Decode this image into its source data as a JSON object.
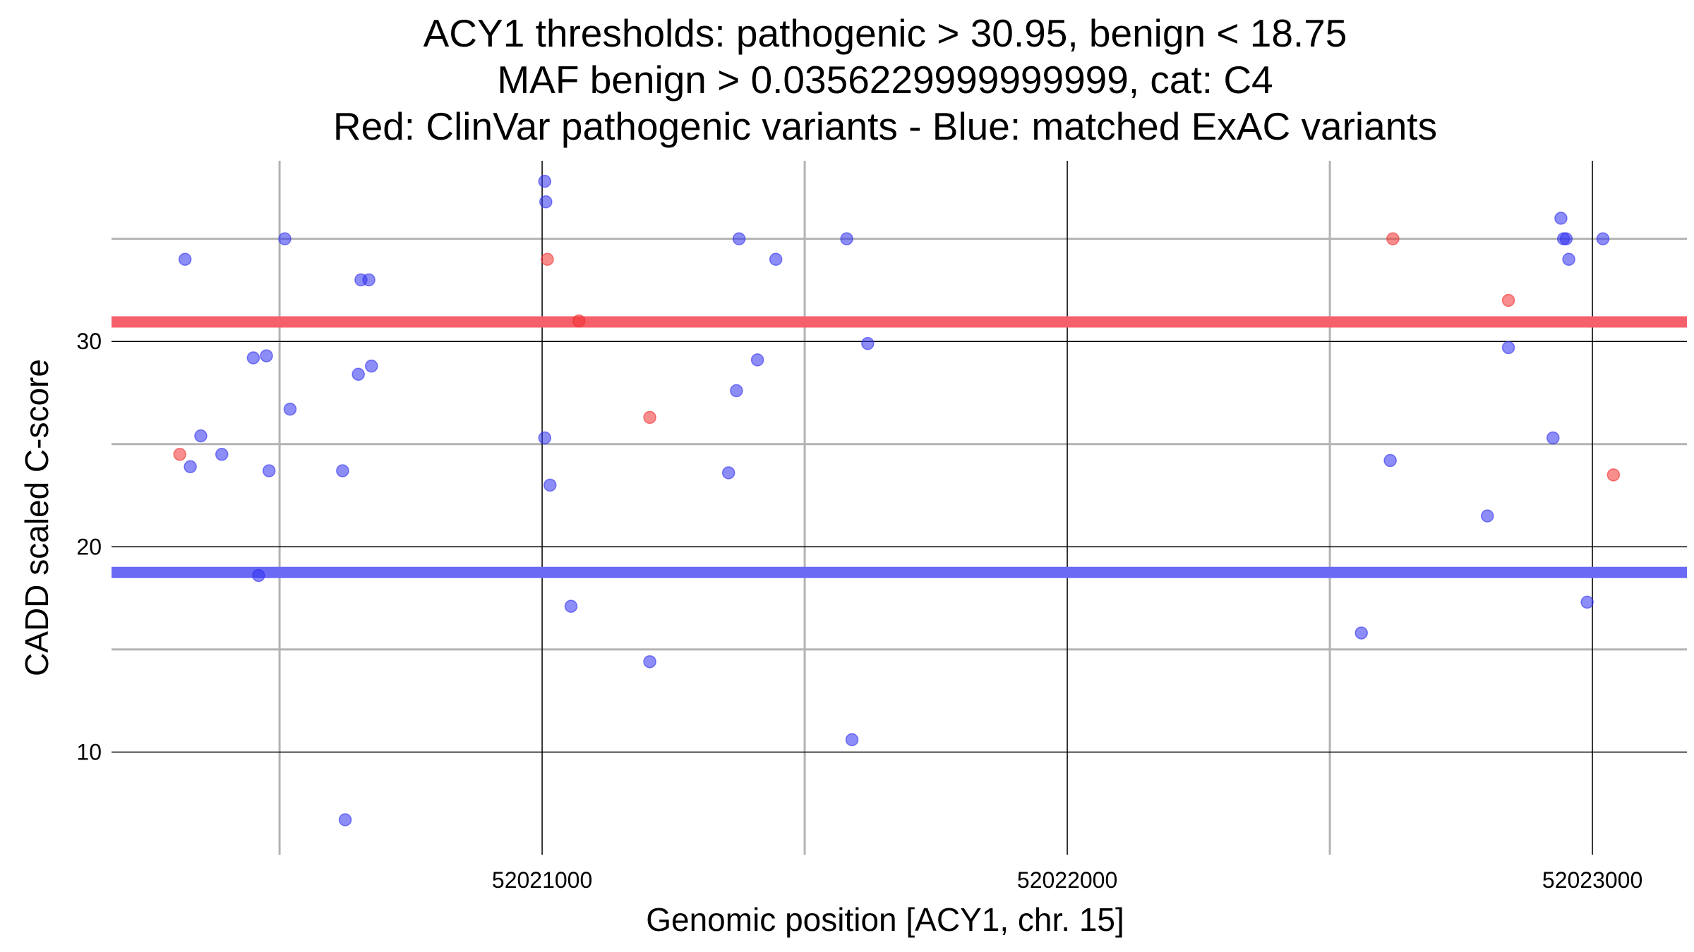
{
  "chart_data": {
    "type": "scatter",
    "title_lines": [
      "ACY1 thresholds: pathogenic > 30.95, benign < 18.75",
      "MAF benign > 0.0356229999999999, cat: C4",
      "Red: ClinVar pathogenic variants - Blue: matched ExAC variants"
    ],
    "xlabel": "Genomic position [ACY1, chr. 15]",
    "ylabel": "CADD scaled C-score",
    "xlim": [
      52020180,
      52023180
    ],
    "ylim": [
      5,
      38.8
    ],
    "x_ticks": [
      52021000,
      52022000,
      52023000
    ],
    "x_tick_labels": [
      "52021000",
      "52022000",
      "52023000"
    ],
    "x_minor_ticks": [
      52020500,
      52021500,
      52022500
    ],
    "y_ticks": [
      10,
      20,
      30
    ],
    "y_tick_labels": [
      "10",
      "20",
      "30"
    ],
    "y_minor_ticks": [
      15,
      25,
      35
    ],
    "grid": true,
    "thresholds": [
      {
        "name": "pathogenic",
        "value": 30.95,
        "color": "#f5606a"
      },
      {
        "name": "benign",
        "value": 18.75,
        "color": "#6a6af5"
      }
    ],
    "series": [
      {
        "color": "#f03030",
        "points": [
          [
            52020310,
            24.5
          ],
          [
            52021010,
            34
          ],
          [
            52021070,
            31
          ],
          [
            52021205,
            26.3
          ],
          [
            52022620,
            35
          ],
          [
            52022840,
            32
          ],
          [
            52023040,
            23.5
          ]
        ]
      },
      {
        "color": "#3030f0",
        "points": [
          [
            52020320,
            34
          ],
          [
            52020330,
            23.9
          ],
          [
            52020350,
            25.4
          ],
          [
            52020390,
            24.5
          ],
          [
            52020450,
            29.2
          ],
          [
            52020460,
            18.6
          ],
          [
            52020475,
            29.3
          ],
          [
            52020480,
            23.7
          ],
          [
            52020510,
            35
          ],
          [
            52020520,
            26.7
          ],
          [
            52020620,
            23.7
          ],
          [
            52020625,
            6.7
          ],
          [
            52020650,
            28.4
          ],
          [
            52020655,
            33
          ],
          [
            52020670,
            33
          ],
          [
            52020675,
            28.8
          ],
          [
            52021005,
            37.8
          ],
          [
            52021007,
            36.8
          ],
          [
            52021005,
            25.3
          ],
          [
            52021015,
            23
          ],
          [
            52021055,
            17.1
          ],
          [
            52021205,
            14.4
          ],
          [
            52021355,
            23.6
          ],
          [
            52021370,
            27.6
          ],
          [
            52021375,
            35
          ],
          [
            52021410,
            29.1
          ],
          [
            52021445,
            34
          ],
          [
            52021580,
            35
          ],
          [
            52021590,
            10.6
          ],
          [
            52021620,
            29.9
          ],
          [
            52022560,
            15.8
          ],
          [
            52022615,
            24.2
          ],
          [
            52022800,
            21.5
          ],
          [
            52022840,
            29.7
          ],
          [
            52022925,
            25.3
          ],
          [
            52022940,
            36
          ],
          [
            52022945,
            35
          ],
          [
            52022950,
            35
          ],
          [
            52022955,
            34
          ],
          [
            52022990,
            17.3
          ],
          [
            52023020,
            35
          ]
        ]
      }
    ]
  }
}
